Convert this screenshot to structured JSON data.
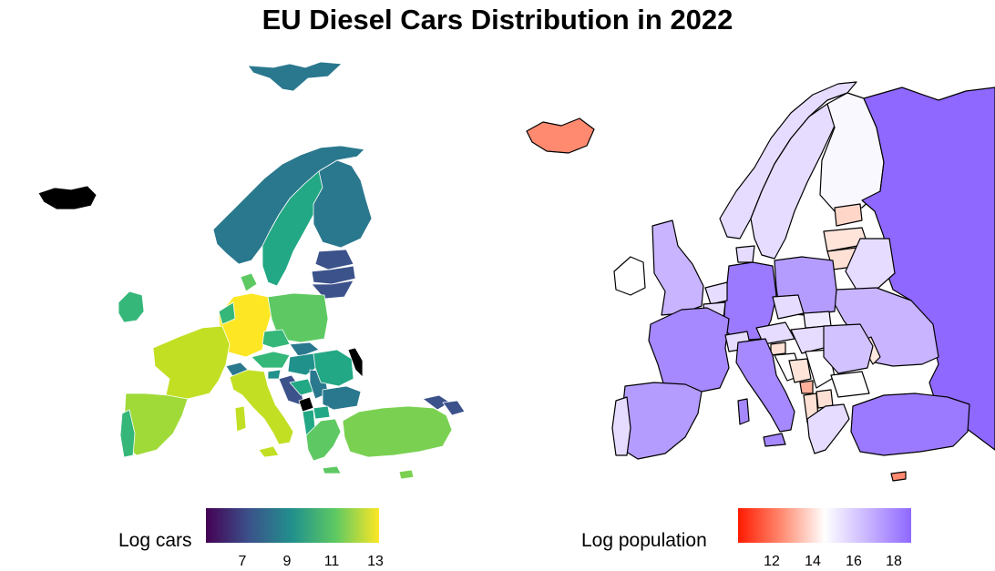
{
  "title": "EU Diesel Cars Distribution in 2022",
  "legends": {
    "cars": {
      "title": "Log cars",
      "ticks": [
        "7",
        "9",
        "11",
        "13"
      ],
      "colors": [
        "#440154",
        "#3b528b",
        "#21918c",
        "#5ec962",
        "#fde725"
      ]
    },
    "population": {
      "title": "Log population",
      "ticks": [
        "12",
        "14",
        "16",
        "18"
      ],
      "colors": [
        "#ff1a00",
        "#ff8a70",
        "#ffffff",
        "#c8b4ff",
        "#8f68ff"
      ]
    }
  }
}
